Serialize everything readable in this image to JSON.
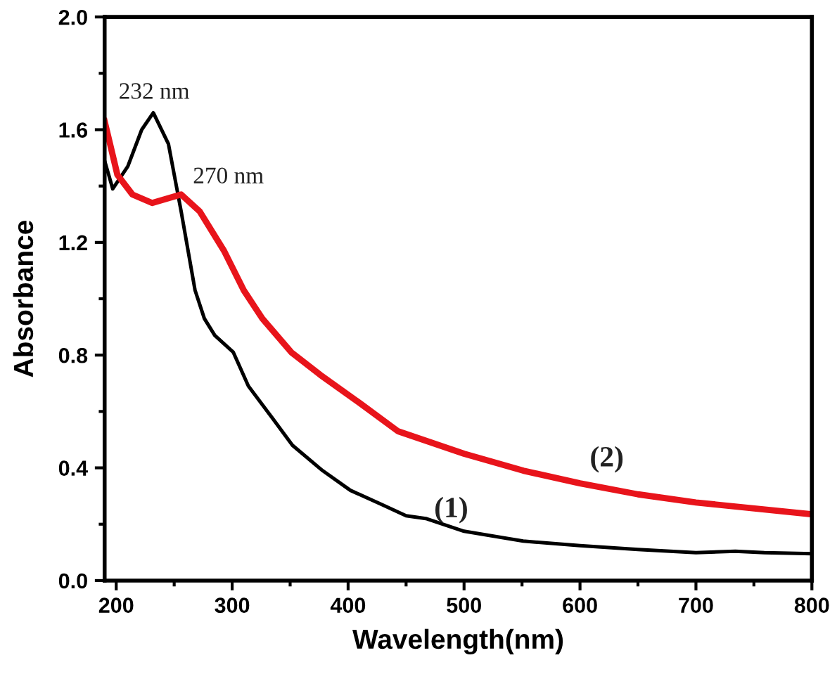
{
  "chart_data": {
    "type": "line",
    "xlabel": "Wavelength(nm)",
    "ylabel": "Absorbance",
    "xlim": [
      190,
      800
    ],
    "xticks": [
      200,
      300,
      400,
      500,
      600,
      700,
      800
    ],
    "ylim": [
      0,
      2.0
    ],
    "yticks": [
      {
        "value": 0,
        "label": "0.0"
      },
      0.4,
      0.8,
      1.2,
      1.6,
      {
        "value": 2,
        "label": "2.0"
      }
    ],
    "grid": false,
    "legend": false,
    "marker": "none",
    "line_style": "solid",
    "series": [
      {
        "color": "#000000",
        "x": [
          190,
          197,
          210,
          222,
          232,
          245,
          256,
          268,
          276,
          285,
          301,
          314,
          335,
          352,
          378,
          402,
          429,
          450,
          467,
          500,
          551,
          600,
          650,
          700,
          734,
          759,
          800
        ],
        "values": [
          1.49,
          1.39,
          1.47,
          1.6,
          1.66,
          1.55,
          1.31,
          1.03,
          0.93,
          0.87,
          0.81,
          0.69,
          0.575,
          0.48,
          0.39,
          0.32,
          0.27,
          0.23,
          0.22,
          0.175,
          0.14,
          0.124,
          0.11,
          0.099,
          0.104,
          0.099,
          0.095
        ]
      },
      {
        "color": "#e8141b",
        "x": [
          190,
          201,
          214,
          231,
          256,
          272,
          293,
          310,
          326,
          351,
          376,
          410,
          443,
          500,
          551,
          600,
          650,
          700,
          800
        ],
        "values": [
          1.63,
          1.44,
          1.37,
          1.34,
          1.37,
          1.31,
          1.17,
          1.03,
          0.93,
          0.81,
          0.73,
          0.63,
          0.53,
          0.45,
          0.39,
          0.345,
          0.306,
          0.277,
          0.235
        ]
      }
    ],
    "annotations": [
      "232 nm",
      "270 nm",
      "(1)",
      "(2)"
    ]
  }
}
